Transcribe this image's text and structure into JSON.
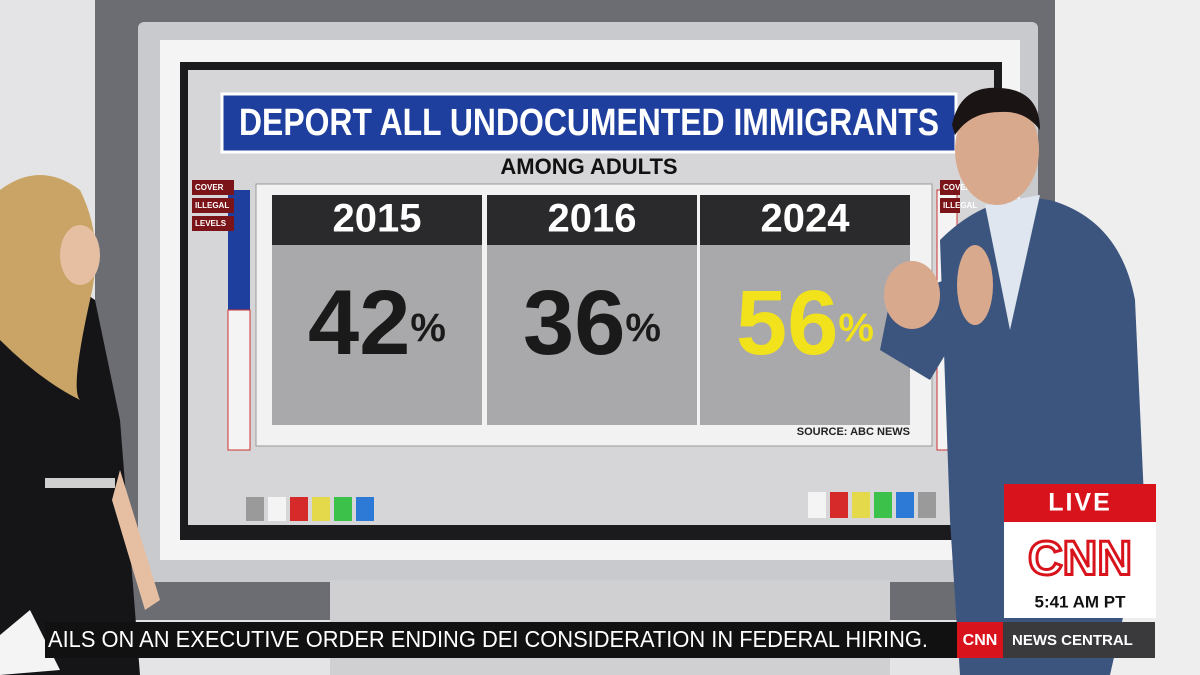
{
  "screen": {
    "title": "DEPORT ALL UNDOCUMENTED IMMIGRANTS",
    "subtitle": "AMONG ADULTS",
    "panels": [
      {
        "year": "2015",
        "value": "42",
        "unit": "%"
      },
      {
        "year": "2016",
        "value": "36",
        "unit": "%"
      },
      {
        "year": "2024",
        "value": "56",
        "unit": "%"
      }
    ],
    "source": "SOURCE: ABC NEWS",
    "left_buttons": [
      "COVER",
      "ILLEGAL",
      "LEVELS"
    ],
    "right_buttons": [
      "COVER",
      "ILLEGAL"
    ]
  },
  "broadcast": {
    "live": "LIVE",
    "network": "CNN",
    "time": "5:41 AM PT",
    "ticker": "AILS ON AN EXECUTIVE ORDER ENDING DEI CONSIDERATION IN FEDERAL HIRING.",
    "ticker_logo": "CNN",
    "show": "NEWS CENTRAL"
  }
}
